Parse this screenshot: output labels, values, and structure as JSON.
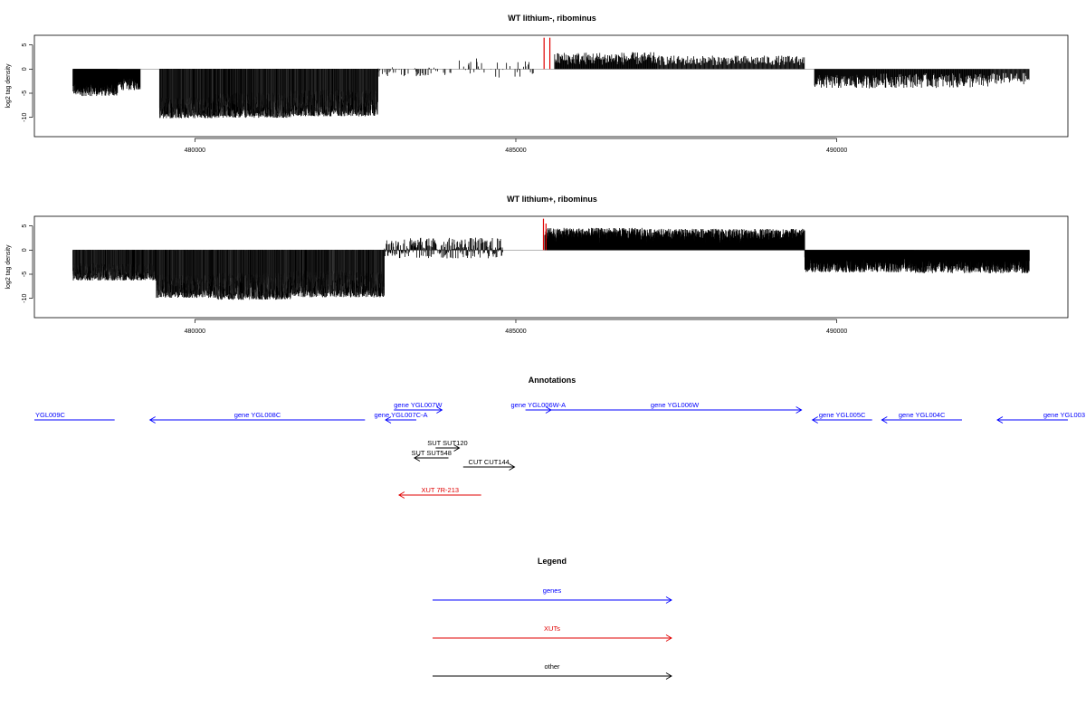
{
  "chart_data": [
    {
      "type": "bar",
      "title": "WT lithium-, ribominus",
      "ylabel": "log2 tag density",
      "xlim": [
        477500,
        493600
      ],
      "ylim": [
        -14,
        7
      ],
      "x_ticks": [
        480000,
        485000,
        490000
      ],
      "y_ticks": [
        5,
        0,
        -5,
        -10
      ],
      "highlight_color": "#e00000",
      "highlight_bars": [
        {
          "x": 485440,
          "y": 6.5
        },
        {
          "x": 485530,
          "y": 6.5
        }
      ],
      "segments": [
        {
          "x_start": 478100,
          "x_end": 478800,
          "y_mean": -4.0,
          "y_amp": 1.6,
          "density": 6
        },
        {
          "x_start": 478800,
          "x_end": 479150,
          "y_mean": -3.2,
          "y_amp": 1.2,
          "density": 3
        },
        {
          "x_start": 479450,
          "x_end": 480300,
          "y_mean": -8.0,
          "y_amp": 2.2,
          "density": 14
        },
        {
          "x_start": 480300,
          "x_end": 481500,
          "y_mean": -7.5,
          "y_amp": 2.6,
          "density": 14
        },
        {
          "x_start": 481500,
          "x_end": 482850,
          "y_mean": -7.0,
          "y_amp": 2.8,
          "density": 14
        },
        {
          "x_start": 482850,
          "x_end": 484000,
          "y_mean": -0.6,
          "y_amp": 1.0,
          "density": 0.6
        },
        {
          "x_start": 484000,
          "x_end": 485300,
          "y_mean": 0.2,
          "y_amp": 2.0,
          "density": 0.4
        },
        {
          "x_start": 485600,
          "x_end": 487200,
          "y_mean": 2.2,
          "y_amp": 1.3,
          "density": 1.6
        },
        {
          "x_start": 487200,
          "x_end": 489500,
          "y_mean": 1.8,
          "y_amp": 1.0,
          "density": 1.2
        },
        {
          "x_start": 489650,
          "x_end": 490600,
          "y_mean": -2.6,
          "y_amp": 1.4,
          "density": 2.0
        },
        {
          "x_start": 490600,
          "x_end": 492400,
          "y_mean": -2.4,
          "y_amp": 1.5,
          "density": 1.6
        },
        {
          "x_start": 492400,
          "x_end": 493000,
          "y_mean": -2.0,
          "y_amp": 1.2,
          "density": 1.2
        }
      ]
    },
    {
      "type": "bar",
      "title": "WT lithium+, ribominus",
      "ylabel": "log2 tag density",
      "xlim": [
        477500,
        493600
      ],
      "ylim": [
        -14,
        7
      ],
      "x_ticks": [
        480000,
        485000,
        490000
      ],
      "y_ticks": [
        5,
        0,
        -5,
        -10
      ],
      "highlight_color": "#e00000",
      "highlight_bars": [
        {
          "x": 485430,
          "y": 6.5
        },
        {
          "x": 485470,
          "y": 5.5
        }
      ],
      "segments": [
        {
          "x_start": 478100,
          "x_end": 479400,
          "y_mean": -4.5,
          "y_amp": 1.8,
          "density": 12
        },
        {
          "x_start": 479400,
          "x_end": 480350,
          "y_mean": -7.5,
          "y_amp": 2.4,
          "density": 14
        },
        {
          "x_start": 480350,
          "x_end": 481500,
          "y_mean": -7.5,
          "y_amp": 2.8,
          "density": 14
        },
        {
          "x_start": 481500,
          "x_end": 482950,
          "y_mean": -7.0,
          "y_amp": 2.8,
          "density": 14
        },
        {
          "x_start": 482950,
          "x_end": 484800,
          "y_mean": 0.4,
          "y_amp": 2.2,
          "density": 2.0
        },
        {
          "x_start": 485450,
          "x_end": 487000,
          "y_mean": 3.0,
          "y_amp": 1.6,
          "density": 6
        },
        {
          "x_start": 487000,
          "x_end": 489500,
          "y_mean": 2.8,
          "y_amp": 1.6,
          "density": 6
        },
        {
          "x_start": 489500,
          "x_end": 491200,
          "y_mean": -3.0,
          "y_amp": 1.6,
          "density": 6
        },
        {
          "x_start": 491200,
          "x_end": 493000,
          "y_mean": -3.2,
          "y_amp": 1.6,
          "density": 5
        }
      ]
    }
  ],
  "annotations": {
    "title": "Annotations",
    "items": [
      {
        "label": "YGL009C",
        "x_start": 477500,
        "x_end": 478750,
        "dir": "none",
        "row": 1,
        "color": "#0000ff",
        "label_at": "left"
      },
      {
        "label": "gene YGL008C",
        "x_start": 479300,
        "x_end": 482650,
        "dir": "left",
        "row": 1,
        "color": "#0000ff",
        "label_at": "center"
      },
      {
        "label": "gene YGL007C-A",
        "x_start": 482970,
        "x_end": 483450,
        "dir": "left",
        "row": 1,
        "color": "#0000ff",
        "label_at": "center"
      },
      {
        "label": "gene YGL007W",
        "x_start": 483100,
        "x_end": 483850,
        "dir": "right",
        "row": 0,
        "color": "#0000ff",
        "label_at": "center"
      },
      {
        "label": "gene YGL006W-A",
        "x_start": 485150,
        "x_end": 485550,
        "dir": "right",
        "row": 0,
        "color": "#0000ff",
        "label_at": "center"
      },
      {
        "label": "gene YGL006W",
        "x_start": 485500,
        "x_end": 489450,
        "dir": "right",
        "row": 0,
        "color": "#0000ff",
        "label_at": "center"
      },
      {
        "label": "gene YGL005C",
        "x_start": 489620,
        "x_end": 490550,
        "dir": "left",
        "row": 1,
        "color": "#0000ff",
        "label_at": "center"
      },
      {
        "label": "gene YGL004C",
        "x_start": 490700,
        "x_end": 491950,
        "dir": "left",
        "row": 1,
        "color": "#0000ff",
        "label_at": "center"
      },
      {
        "label": "gene YGL003",
        "x_start": 492500,
        "x_end": 493600,
        "dir": "left",
        "row": 1,
        "color": "#0000ff",
        "label_at": "right"
      },
      {
        "label": "SUT SUT120",
        "x_start": 483750,
        "x_end": 484120,
        "dir": "right",
        "row": 2,
        "color": "#000000",
        "label_at": "center"
      },
      {
        "label": "SUT SUT548",
        "x_start": 483420,
        "x_end": 483950,
        "dir": "left",
        "row": 3,
        "color": "#000000",
        "label_at": "center"
      },
      {
        "label": "CUT CUT144",
        "x_start": 484180,
        "x_end": 484980,
        "dir": "right",
        "row": 4,
        "color": "#000000",
        "label_at": "center"
      },
      {
        "label": "XUT 7R-213",
        "x_start": 483180,
        "x_end": 484460,
        "dir": "left",
        "row": 5,
        "color": "#e00000",
        "label_at": "center"
      }
    ]
  },
  "legend": {
    "title": "Legend",
    "items": [
      {
        "label": "genes",
        "color": "#0000ff"
      },
      {
        "label": "XUTs",
        "color": "#e00000"
      },
      {
        "label": "other",
        "color": "#000000"
      }
    ]
  }
}
